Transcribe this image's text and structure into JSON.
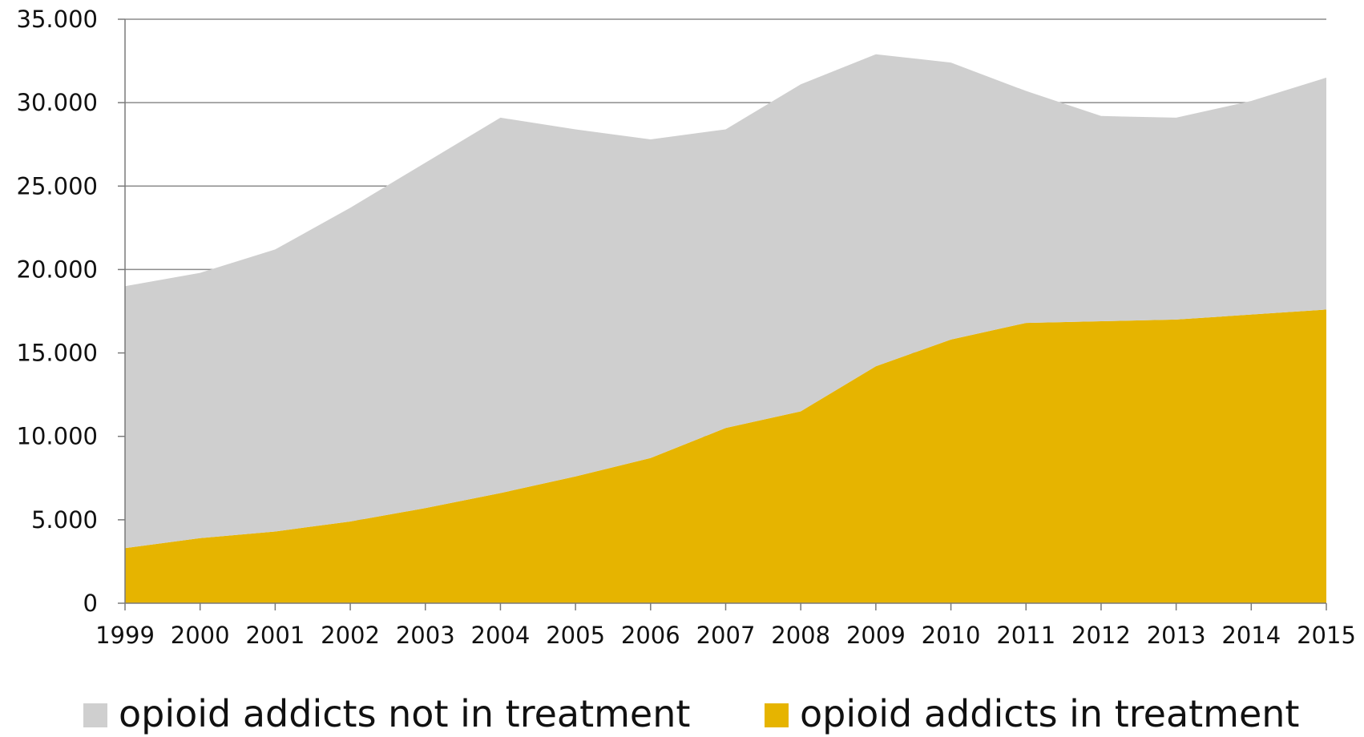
{
  "chart_data": {
    "type": "area",
    "stacked": true,
    "x": [
      "1999",
      "2000",
      "2001",
      "2002",
      "2003",
      "2004",
      "2005",
      "2006",
      "2007",
      "2008",
      "2009",
      "2010",
      "2011",
      "2012",
      "2013",
      "2014",
      "2015"
    ],
    "series": [
      {
        "name": "opioid addicts in treatment",
        "color": "#e6b400",
        "values": [
          3300,
          3900,
          4300,
          4900,
          5700,
          6600,
          7600,
          8700,
          10500,
          11500,
          14200,
          15800,
          16800,
          16900,
          17000,
          17300,
          17600
        ]
      },
      {
        "name": "opioid addicts not in treatment",
        "color": "#cfcfcf",
        "values": [
          15700,
          15900,
          16900,
          18800,
          20700,
          22500,
          20800,
          19100,
          17900,
          19600,
          18700,
          16600,
          13900,
          12300,
          12100,
          12800,
          13900
        ]
      }
    ],
    "y_ticks": [
      "0",
      "5.000",
      "10.000",
      "15.000",
      "20.000",
      "25.000",
      "30.000",
      "35.000"
    ],
    "ylim": [
      0,
      35000
    ],
    "y_tick_step": 5000,
    "grid": true,
    "legend_position": "bottom",
    "legend_order": [
      "opioid addicts not in treatment",
      "opioid addicts in treatment"
    ]
  }
}
